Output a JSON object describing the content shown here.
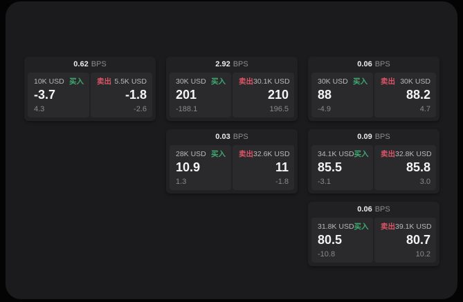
{
  "labels": {
    "bps": "BPS",
    "buy": "买入",
    "sell": "卖出"
  },
  "colors": {
    "buy": "#3fa970",
    "sell": "#d95568",
    "page_bg": "#040404",
    "panel_bg": "#1b1b1d",
    "card_bg": "#212123",
    "tile_bg": "#2a2a2c"
  },
  "cards": [
    {
      "row": 1,
      "col": 1,
      "bps": "0.62",
      "buy": {
        "amount": "10K USD",
        "value": "-3.7",
        "sub": "4.3"
      },
      "sell": {
        "amount": "5.5K USD",
        "value": "-1.8",
        "sub": "-2.6"
      }
    },
    {
      "row": 1,
      "col": 2,
      "bps": "2.92",
      "buy": {
        "amount": "30K USD",
        "value": "201",
        "sub": "-188.1"
      },
      "sell": {
        "amount": "30.1K USD",
        "value": "210",
        "sub": "196.5"
      }
    },
    {
      "row": 1,
      "col": 3,
      "bps": "0.06",
      "buy": {
        "amount": "30K USD",
        "value": "88",
        "sub": "-4.9"
      },
      "sell": {
        "amount": "30K USD",
        "value": "88.2",
        "sub": "4.7"
      }
    },
    {
      "row": 2,
      "col": 2,
      "bps": "0.03",
      "buy": {
        "amount": "28K USD",
        "value": "10.9",
        "sub": "1.3"
      },
      "sell": {
        "amount": "32.6K USD",
        "value": "11",
        "sub": "-1.8"
      }
    },
    {
      "row": 2,
      "col": 3,
      "bps": "0.09",
      "buy": {
        "amount": "34.1K USD",
        "value": "85.5",
        "sub": "-3.1"
      },
      "sell": {
        "amount": "32.8K USD",
        "value": "85.8",
        "sub": "3.0"
      }
    },
    {
      "row": 3,
      "col": 3,
      "bps": "0.06",
      "buy": {
        "amount": "31.8K USD",
        "value": "80.5",
        "sub": "-10.8"
      },
      "sell": {
        "amount": "39.1K USD",
        "value": "80.7",
        "sub": "10.2"
      }
    }
  ]
}
